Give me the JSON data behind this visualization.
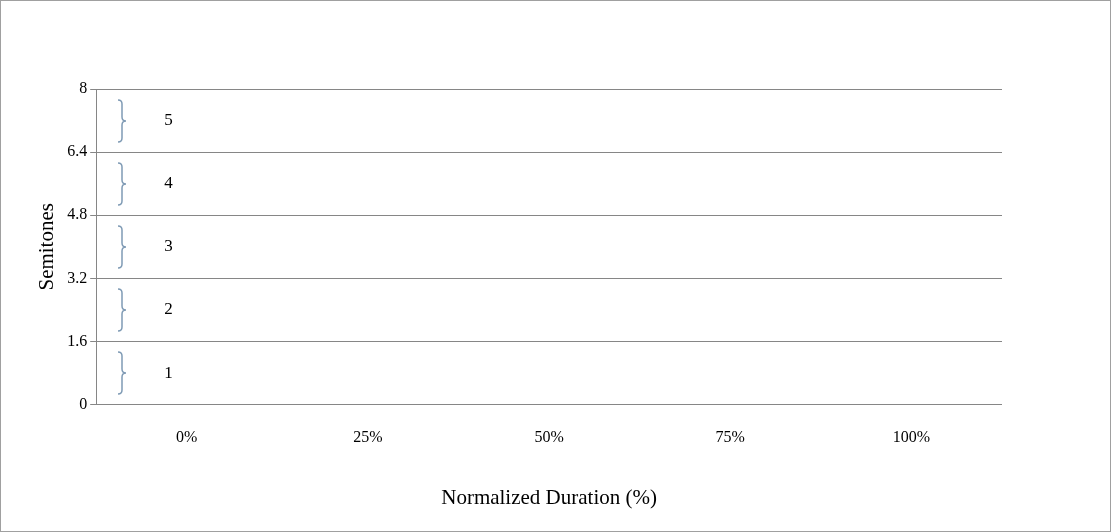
{
  "chart_data": {
    "type": "line",
    "xlabel": "Normalized Duration (%)",
    "ylabel": "Semitones",
    "categories": [
      "0%",
      "25%",
      "50%",
      "75%",
      "100%"
    ],
    "ylim": [
      0,
      8
    ],
    "yticks": [
      0,
      1.6,
      3.2,
      4.8,
      6.4,
      8
    ],
    "grid": "y",
    "legend": false,
    "annotations": [
      "1",
      "2",
      "3",
      "4",
      "5"
    ]
  }
}
